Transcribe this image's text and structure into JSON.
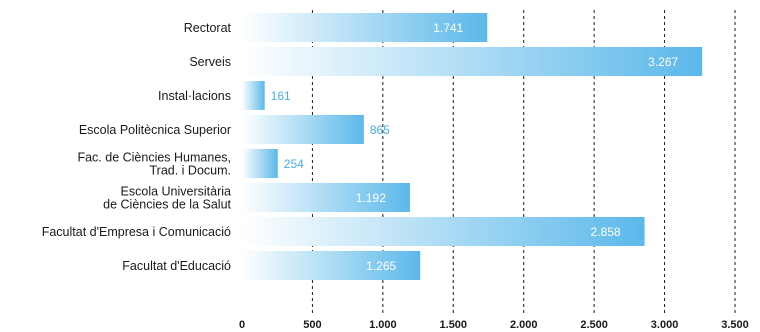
{
  "chart_data": {
    "type": "bar",
    "orientation": "horizontal",
    "title": "",
    "xlabel": "",
    "ylabel": "",
    "categories": [
      [
        "Rectorat"
      ],
      [
        "Serveis"
      ],
      [
        "Instal·lacions"
      ],
      [
        "Escola Politècnica Superior"
      ],
      [
        "Fac. de Ciències Humanes,",
        "Trad. i Docum."
      ],
      [
        "Escola Universitària",
        "de Ciències de la Salut"
      ],
      [
        "Facultat d'Empresa i Comunicació"
      ],
      [
        "Facultat d'Educació"
      ]
    ],
    "values": [
      1741,
      3267,
      161,
      865,
      254,
      1192,
      2858,
      1265
    ],
    "value_labels": [
      "1.741",
      "3.267",
      "161",
      "865",
      "254",
      "1.192",
      "2.858",
      "1.265"
    ],
    "xlim": [
      0,
      3500
    ],
    "ticks": [
      0,
      500,
      1000,
      1500,
      2000,
      2500,
      3000,
      3500
    ],
    "tick_labels": [
      "0",
      "500",
      "1.000",
      "1.500",
      "2.000",
      "2.500",
      "3.000",
      "3.500"
    ],
    "grid": "vertical-dashed",
    "legend": "none",
    "colors": {
      "bar_start": "#ffffff",
      "bar_end": "#5bb8ea",
      "label_inside": "#ffffff",
      "label_outside": "#4aaee6",
      "grid": "#1a1a1a",
      "text": "#1a1a1a"
    }
  }
}
